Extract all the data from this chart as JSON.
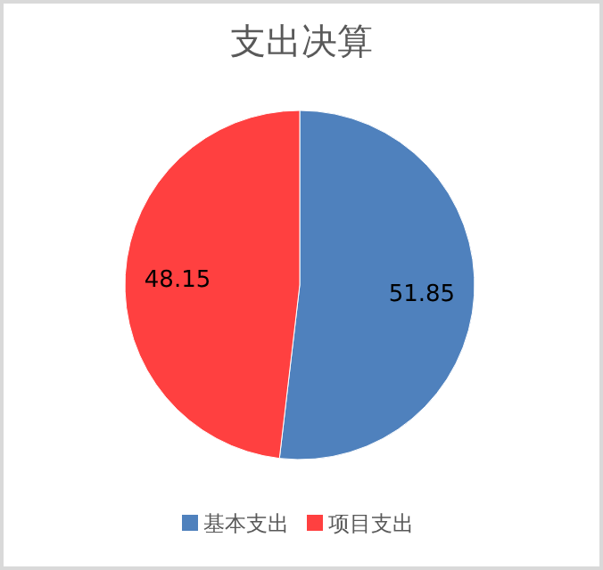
{
  "chart_data": {
    "type": "pie",
    "title": "支出决算",
    "categories": [
      "基本支出",
      "项目支出"
    ],
    "values": [
      51.85,
      48.15
    ],
    "colors": [
      "#4f81bd",
      "#ff4040"
    ],
    "data_labels": true,
    "legend": "bottom"
  }
}
